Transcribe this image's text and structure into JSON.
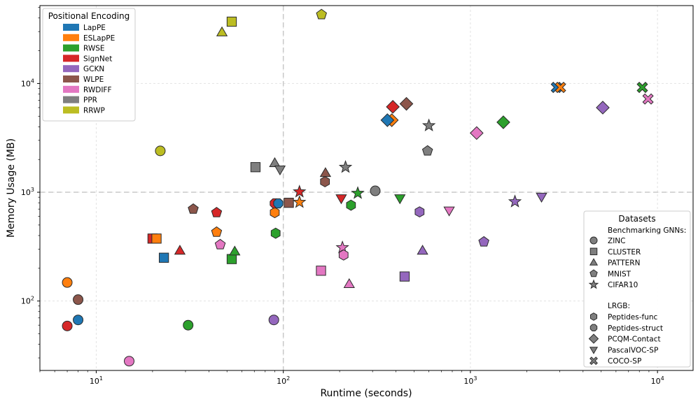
{
  "chart_data": {
    "type": "scatter",
    "xscale": "log",
    "yscale": "log",
    "xlim": [
      5,
      15500
    ],
    "ylim": [
      23,
      52000
    ],
    "xlabel": "Runtime (seconds)",
    "ylabel": "Memory Usage (MB)",
    "xticks": [
      {
        "value": 10,
        "base": "10",
        "exp": "1"
      },
      {
        "value": 100,
        "base": "10",
        "exp": "2"
      },
      {
        "value": 1000,
        "base": "10",
        "exp": "3"
      },
      {
        "value": 10000,
        "base": "10",
        "exp": "4"
      }
    ],
    "yticks": [
      {
        "value": 100,
        "base": "10",
        "exp": "2"
      },
      {
        "value": 1000,
        "base": "10",
        "exp": "3"
      },
      {
        "value": 10000,
        "base": "10",
        "exp": "4"
      }
    ],
    "reference_lines": {
      "x": 100,
      "y": 1000
    },
    "grid": true,
    "legend_pe": {
      "title": "Positional Encoding",
      "entries": [
        {
          "label": "LapPE",
          "color": "#1f77b4"
        },
        {
          "label": "ESLapPE",
          "color": "#ff7f0e"
        },
        {
          "label": "RWSE",
          "color": "#2ca02c"
        },
        {
          "label": "SignNet",
          "color": "#d62728"
        },
        {
          "label": "GCKN",
          "color": "#9467bd"
        },
        {
          "label": "WLPE",
          "color": "#8c564b"
        },
        {
          "label": "RWDIFF",
          "color": "#e377c2"
        },
        {
          "label": "PPR",
          "color": "#7f7f7f"
        },
        {
          "label": "RRWP",
          "color": "#bcbd22"
        }
      ]
    },
    "legend_datasets": {
      "title": "Datasets",
      "group1": "Benchmarking GNNs:",
      "group1_entries": [
        {
          "label": "ZINC",
          "marker": "circle"
        },
        {
          "label": "CLUSTER",
          "marker": "square"
        },
        {
          "label": "PATTERN",
          "marker": "triangle"
        },
        {
          "label": "MNIST",
          "marker": "pentagon"
        },
        {
          "label": "CIFAR10",
          "marker": "star"
        }
      ],
      "group2": "LRGB:",
      "group2_entries": [
        {
          "label": "Peptides-func",
          "marker": "hexagon"
        },
        {
          "label": "Peptides-struct",
          "marker": "octagon"
        },
        {
          "label": "PCQM-Contact",
          "marker": "diamond"
        },
        {
          "label": "PascalVOC-SP",
          "marker": "tri-down"
        },
        {
          "label": "COCO-SP",
          "marker": "x"
        }
      ]
    },
    "points": [
      {
        "pe": "RRWP",
        "ds": "ZINC",
        "x": 22,
        "y": 2400
      },
      {
        "pe": "ESLapPE",
        "ds": "ZINC",
        "x": 7,
        "y": 148
      },
      {
        "pe": "WLPE",
        "ds": "ZINC",
        "x": 8,
        "y": 103
      },
      {
        "pe": "LapPE",
        "ds": "ZINC",
        "x": 8,
        "y": 67
      },
      {
        "pe": "SignNet",
        "ds": "ZINC",
        "x": 7,
        "y": 59
      },
      {
        "pe": "RWDIFF",
        "ds": "ZINC",
        "x": 15,
        "y": 28
      },
      {
        "pe": "RWSE",
        "ds": "ZINC",
        "x": 31,
        "y": 60
      },
      {
        "pe": "GCKN",
        "ds": "ZINC",
        "x": 89,
        "y": 67
      },
      {
        "pe": "PPR",
        "ds": "ZINC",
        "x": 310,
        "y": 1030
      },
      {
        "pe": "RRWP",
        "ds": "CLUSTER",
        "x": 53,
        "y": 37000
      },
      {
        "pe": "PPR",
        "ds": "CLUSTER",
        "x": 71,
        "y": 1700
      },
      {
        "pe": "WLPE",
        "ds": "CLUSTER",
        "x": 107,
        "y": 800
      },
      {
        "pe": "SignNet",
        "ds": "CLUSTER",
        "x": 20,
        "y": 375
      },
      {
        "pe": "ESLapPE",
        "ds": "CLUSTER",
        "x": 21,
        "y": 375
      },
      {
        "pe": "LapPE",
        "ds": "CLUSTER",
        "x": 23,
        "y": 250
      },
      {
        "pe": "RWSE",
        "ds": "CLUSTER",
        "x": 53,
        "y": 243
      },
      {
        "pe": "RWDIFF",
        "ds": "CLUSTER",
        "x": 159,
        "y": 190
      },
      {
        "pe": "GCKN",
        "ds": "CLUSTER",
        "x": 445,
        "y": 168
      },
      {
        "pe": "RRWP",
        "ds": "PATTERN",
        "x": 47,
        "y": 29500
      },
      {
        "pe": "PPR",
        "ds": "PATTERN",
        "x": 90,
        "y": 1850
      },
      {
        "pe": "WLPE",
        "ds": "PATTERN",
        "x": 168,
        "y": 1500
      },
      {
        "pe": "SignNet",
        "ds": "PATTERN",
        "x": 28,
        "y": 290
      },
      {
        "pe": "RWSE",
        "ds": "PATTERN",
        "x": 55,
        "y": 285
      },
      {
        "pe": "GCKN",
        "ds": "PATTERN",
        "x": 555,
        "y": 290
      },
      {
        "pe": "RWDIFF",
        "ds": "PATTERN",
        "x": 225,
        "y": 143
      },
      {
        "pe": "RRWP",
        "ds": "MNIST",
        "x": 160,
        "y": 43000
      },
      {
        "pe": "PPR",
        "ds": "MNIST",
        "x": 590,
        "y": 2400
      },
      {
        "pe": "WLPE",
        "ds": "MNIST",
        "x": 33,
        "y": 700
      },
      {
        "pe": "SignNet",
        "ds": "MNIST",
        "x": 44,
        "y": 650
      },
      {
        "pe": "ESLapPE",
        "ds": "MNIST",
        "x": 44,
        "y": 430
      },
      {
        "pe": "RWDIFF",
        "ds": "MNIST",
        "x": 46,
        "y": 330
      },
      {
        "pe": "GCKN",
        "ds": "MNIST",
        "x": 1180,
        "y": 350
      },
      {
        "pe": "PPR",
        "ds": "CIFAR10",
        "x": 600,
        "y": 4100
      },
      {
        "pe": "PPR",
        "ds": "CIFAR10",
        "x": 215,
        "y": 1700
      },
      {
        "pe": "SignNet",
        "ds": "CIFAR10",
        "x": 122,
        "y": 1010
      },
      {
        "pe": "ESLapPE",
        "ds": "CIFAR10",
        "x": 122,
        "y": 810
      },
      {
        "pe": "RWSE",
        "ds": "CIFAR10",
        "x": 250,
        "y": 980
      },
      {
        "pe": "GCKN",
        "ds": "CIFAR10",
        "x": 1730,
        "y": 820
      },
      {
        "pe": "RWDIFF",
        "ds": "CIFAR10",
        "x": 207,
        "y": 310
      },
      {
        "pe": "WLPE",
        "ds": "Peptides-func",
        "x": 167,
        "y": 1250
      },
      {
        "pe": "RWSE",
        "ds": "Peptides-func",
        "x": 230,
        "y": 760
      },
      {
        "pe": "ESLapPE",
        "ds": "Peptides-func",
        "x": 90,
        "y": 650
      },
      {
        "pe": "RWSE",
        "ds": "Peptides-func",
        "x": 91,
        "y": 420
      },
      {
        "pe": "GCKN",
        "ds": "Peptides-func",
        "x": 535,
        "y": 660
      },
      {
        "pe": "RWDIFF",
        "ds": "Peptides-func",
        "x": 210,
        "y": 265
      },
      {
        "pe": "SignNet",
        "ds": "Peptides-struct",
        "x": 90,
        "y": 790
      },
      {
        "pe": "LapPE",
        "ds": "Peptides-struct",
        "x": 94,
        "y": 790
      },
      {
        "pe": "ESLapPE",
        "ds": "PCQM-Contact",
        "x": 380,
        "y": 4600
      },
      {
        "pe": "LapPE",
        "ds": "PCQM-Contact",
        "x": 360,
        "y": 4600
      },
      {
        "pe": "SignNet",
        "ds": "PCQM-Contact",
        "x": 385,
        "y": 6100
      },
      {
        "pe": "WLPE",
        "ds": "PCQM-Contact",
        "x": 455,
        "y": 6500
      },
      {
        "pe": "RWDIFF",
        "ds": "PCQM-Contact",
        "x": 1080,
        "y": 3500
      },
      {
        "pe": "RWSE",
        "ds": "PCQM-Contact",
        "x": 1500,
        "y": 4400
      },
      {
        "pe": "GCKN",
        "ds": "PCQM-Contact",
        "x": 5100,
        "y": 6000
      },
      {
        "pe": "PPR",
        "ds": "PascalVOC-SP",
        "x": 96,
        "y": 1620
      },
      {
        "pe": "SignNet",
        "ds": "PascalVOC-SP",
        "x": 204,
        "y": 880
      },
      {
        "pe": "RWSE",
        "ds": "PascalVOC-SP",
        "x": 420,
        "y": 880
      },
      {
        "pe": "RWDIFF",
        "ds": "PascalVOC-SP",
        "x": 770,
        "y": 680
      },
      {
        "pe": "GCKN",
        "ds": "PascalVOC-SP",
        "x": 2400,
        "y": 910
      },
      {
        "pe": "LapPE",
        "ds": "COCO-SP",
        "x": 2880,
        "y": 9200
      },
      {
        "pe": "ESLapPE",
        "ds": "COCO-SP",
        "x": 3030,
        "y": 9200
      },
      {
        "pe": "RWSE",
        "ds": "COCO-SP",
        "x": 8300,
        "y": 9200
      },
      {
        "pe": "RWDIFF",
        "ds": "COCO-SP",
        "x": 8900,
        "y": 7200
      }
    ]
  }
}
